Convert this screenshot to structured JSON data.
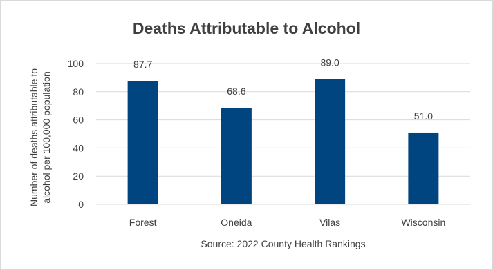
{
  "chart_data": {
    "type": "bar",
    "title": "Deaths Attributable to Alcohol",
    "categories": [
      "Forest",
      "Oneida",
      "Vilas",
      "Wisconsin"
    ],
    "values": [
      87.7,
      68.6,
      89.0,
      51.0
    ],
    "data_labels": [
      "87.7",
      "68.6",
      "89.0",
      "51.0"
    ],
    "xlabel": "Source: 2022 County Health Rankings",
    "ylabel_lines": [
      "Number of deaths attributable to",
      "alcohol per 100,000 population"
    ],
    "ylim": [
      0,
      100
    ],
    "yticks": [
      0,
      20,
      40,
      60,
      80,
      100
    ],
    "grid": true,
    "legend": "none",
    "bar_color": "#004480",
    "grid_color": "#d9d9d9",
    "text_color": "#404040"
  }
}
